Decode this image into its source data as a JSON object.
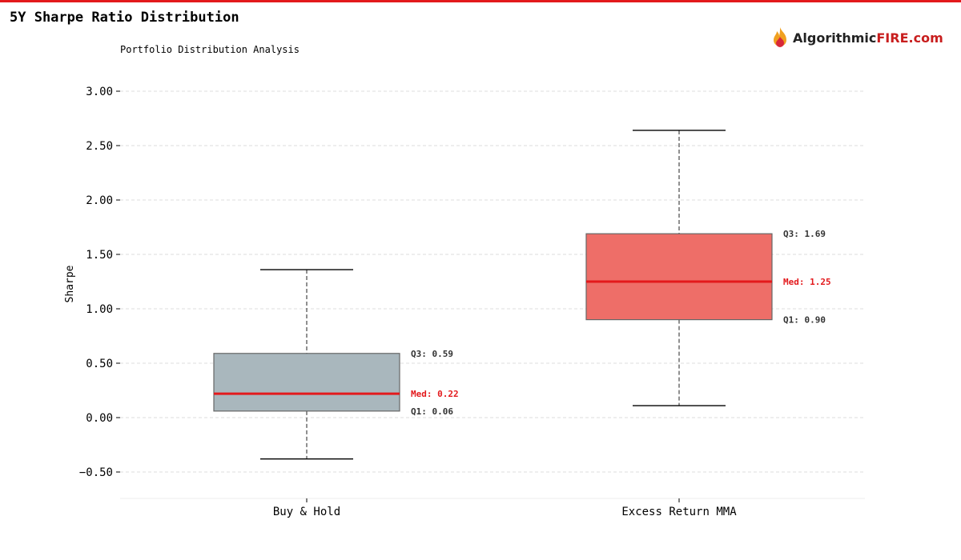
{
  "title": "5Y Sharpe Ratio Distribution",
  "subtitle": "Portfolio Distribution Analysis",
  "logo": {
    "text_a": "Algorithmic",
    "text_b": "FIRE.com"
  },
  "colors": {
    "accent": "#e3191c",
    "box1": "#a9b7bd",
    "box2": "#ee6e68",
    "median": "#e3191c"
  },
  "chart_data": {
    "type": "box",
    "title": "5Y Sharpe Ratio Distribution",
    "ylabel": "Sharpe",
    "xlabel": "",
    "ylim": [
      -0.74,
      3.1
    ],
    "yticks": [
      -0.5,
      0,
      0.5,
      1,
      1.5,
      2,
      2.5,
      3
    ],
    "ytick_labels": [
      "−0.50",
      "0.00",
      "0.50",
      "1.00",
      "1.50",
      "2.00",
      "2.50",
      "3.00"
    ],
    "grid": true,
    "categories": [
      "Buy & Hold",
      "Excess Return MMA"
    ],
    "series": [
      {
        "name": "Buy & Hold",
        "whisker_low": -0.38,
        "q1": 0.06,
        "median": 0.22,
        "q3": 0.59,
        "whisker_high": 1.36,
        "labels": {
          "q3": "Q3: 0.59",
          "med": "Med: 0.22",
          "q1": "Q1: 0.06"
        }
      },
      {
        "name": "Excess Return MMA",
        "whisker_low": 0.11,
        "q1": 0.9,
        "median": 1.25,
        "q3": 1.69,
        "whisker_high": 2.64,
        "labels": {
          "q3": "Q3: 1.69",
          "med": "Med: 1.25",
          "q1": "Q1: 0.90"
        }
      }
    ]
  }
}
